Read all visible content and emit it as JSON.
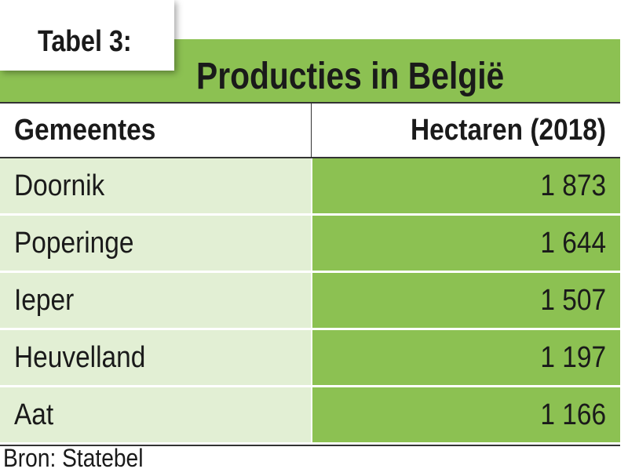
{
  "label": "Tabel 3:",
  "title": "Producties in België",
  "table": {
    "header": [
      "Gemeentes",
      "Hectaren (2018)"
    ],
    "rows": [
      [
        "Doornik",
        "1 873"
      ],
      [
        "Poperinge",
        "1 644"
      ],
      [
        "Ieper",
        "1 507"
      ],
      [
        "Heuvelland",
        "1 197"
      ],
      [
        "Aat",
        "1 166"
      ]
    ]
  },
  "source": "Bron: Statebel"
}
